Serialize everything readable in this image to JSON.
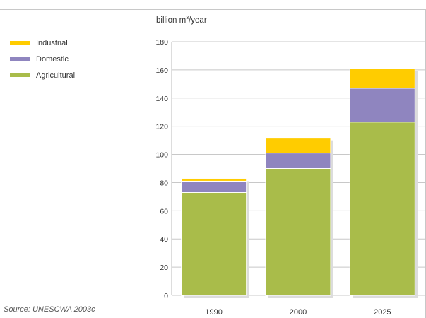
{
  "chart_data": {
    "type": "bar",
    "stacked": true,
    "unit_label": "billion m³/year",
    "categories": [
      "1990",
      "2000",
      "2025"
    ],
    "series": [
      {
        "name": "Agricultural",
        "color": "#a9bc4a",
        "values": [
          73,
          90,
          123
        ]
      },
      {
        "name": "Domestic",
        "color": "#8f85bf",
        "values": [
          8,
          11,
          24
        ]
      },
      {
        "name": "Industrial",
        "color": "#ffcc00",
        "values": [
          2,
          11,
          14
        ]
      }
    ],
    "ylim": [
      0,
      180
    ],
    "yticks": [
      "0",
      "20",
      "40",
      "60",
      "80",
      "100",
      "120",
      "140",
      "160",
      "180"
    ],
    "grid": true,
    "legend_position": "top-left",
    "legend_order": [
      "Industrial",
      "Domestic",
      "Agricultural"
    ],
    "source": "Source: UNESCWA 2003c"
  }
}
